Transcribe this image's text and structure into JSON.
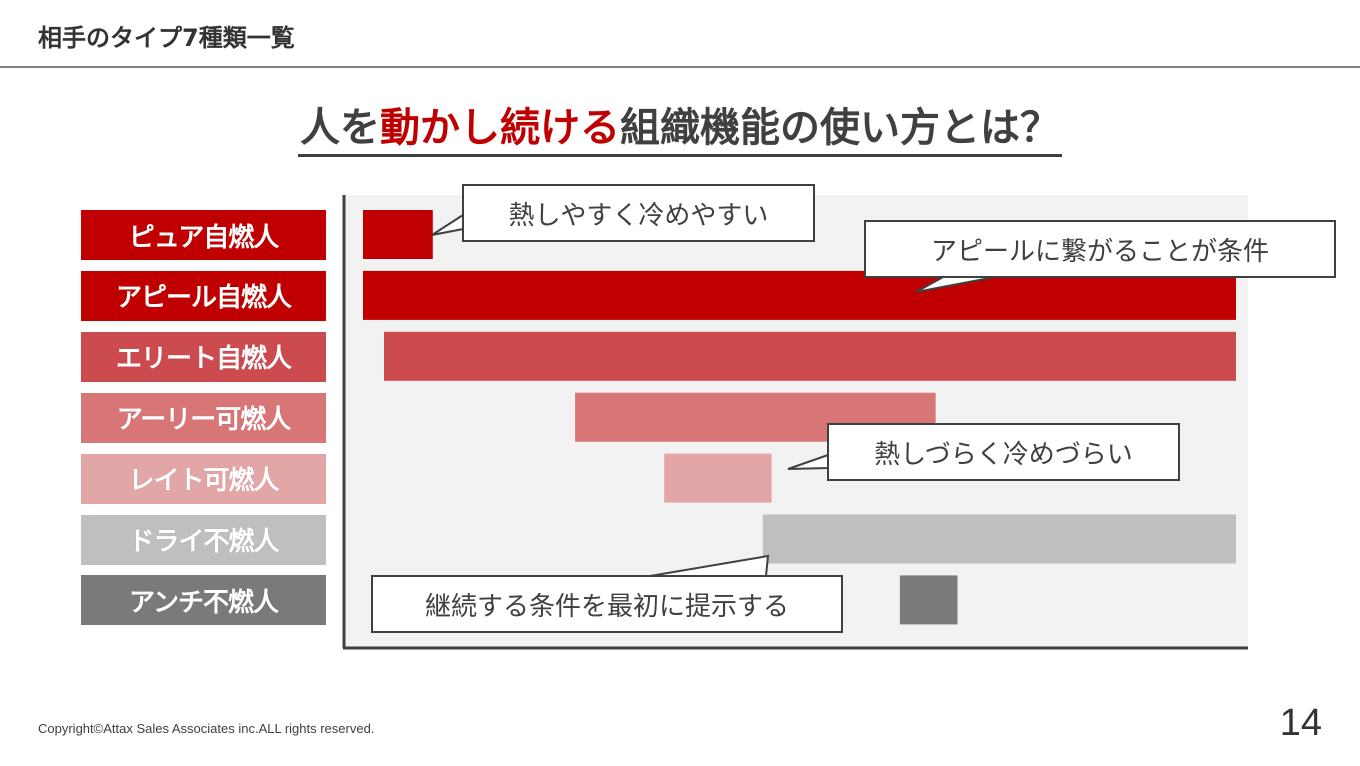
{
  "header": {
    "title": "相手のタイプ7種類一覧"
  },
  "main_title": {
    "part1": "人を",
    "part2_accent": "動かし続ける",
    "part3": "組織機能の使い方とは？"
  },
  "chart_data": {
    "type": "bar",
    "orientation": "horizontal-range",
    "categories": [
      "ピュア自燃人",
      "アピール自燃人",
      "エリート自燃人",
      "アーリー可燃人",
      "レイト可燃人",
      "ドライ不燃人",
      "アンチ不燃人"
    ],
    "colors": [
      "#c00000",
      "#c00000",
      "#cc4b4f",
      "#d87576",
      "#e2a6a7",
      "#bfbfbf",
      "#7a7a7a"
    ],
    "ranges": [
      [
        0.0,
        0.08
      ],
      [
        0.0,
        1.0
      ],
      [
        0.024,
        1.0
      ],
      [
        0.243,
        0.656
      ],
      [
        0.345,
        0.468
      ],
      [
        0.458,
        1.0
      ],
      [
        0.615,
        0.681
      ]
    ],
    "title": "",
    "xlabel": "",
    "ylabel": "",
    "grid": false,
    "legend": "none"
  },
  "callouts": [
    {
      "text": "熱しやすく冷めやすい"
    },
    {
      "text": "アピールに繋がることが条件"
    },
    {
      "text": "熱しづらく冷めづらい"
    },
    {
      "text": "継続する条件を最初に提示する"
    }
  ],
  "footer": {
    "copyright": "Copyright©Attax Sales Associates inc.ALL rights reserved.",
    "page_number": "14"
  },
  "colors": {
    "accent": "#c00000",
    "axis": "#404040",
    "plot_bg": "#f2f2f2"
  }
}
